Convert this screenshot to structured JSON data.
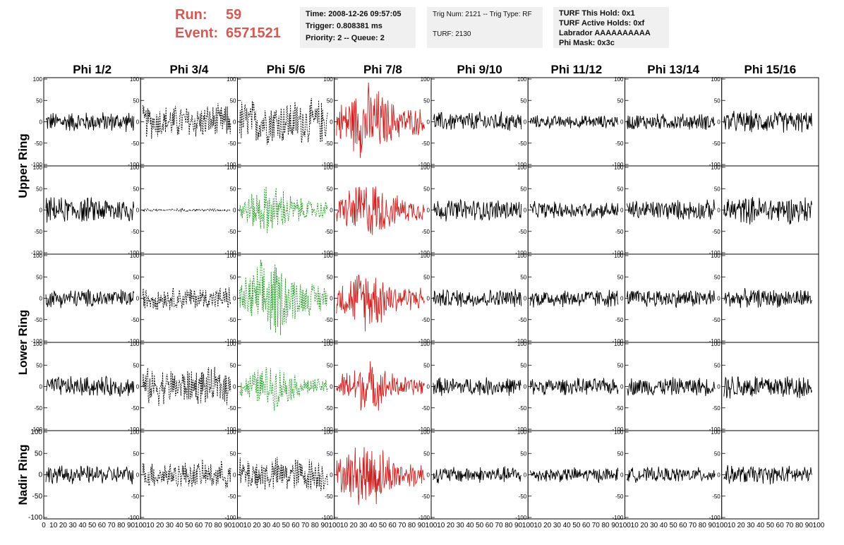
{
  "header": {
    "run_label": "Run:",
    "run_value": "59",
    "event_label": "Event:",
    "event_value": "6571521",
    "panel1": [
      "Time: 2008-12-26 09:57:05",
      "Trigger: 0.808381 ms",
      "Priority: 2 -- Queue: 2"
    ],
    "panel2": [
      "Trig Num: 2121 -- Trig Type: RF",
      "",
      "TURF: 2130"
    ],
    "panel3": [
      "TURF This Hold: 0x1",
      "TURF Active Holds: 0xf",
      "Labrador AAAAAAAAAA",
      "Phi Mask: 0x3c"
    ]
  },
  "colors": {
    "accent": "#d05a55",
    "normal": "#000000",
    "red": "#cc2222",
    "green": "#229922",
    "panel_bg": "#f0f0f0"
  },
  "chart_data": {
    "type": "line",
    "columns": [
      "Phi 1/2",
      "Phi 3/4",
      "Phi 5/6",
      "Phi 7/8",
      "Phi 9/10",
      "Phi 11/12",
      "Phi 13/14",
      "Phi 15/16"
    ],
    "rows": [
      "Upper Ring",
      "Lower Ring",
      "Nadir Ring"
    ],
    "ylim": [
      -100,
      100
    ],
    "xlim": [
      0,
      100
    ],
    "y_ticks": [
      -100,
      -50,
      0,
      50,
      100
    ],
    "x_ticks": [
      0,
      10,
      20,
      30,
      40,
      50,
      60,
      70,
      80,
      90,
      100
    ],
    "panel_styles": [
      [
        "solid",
        "dashed",
        "dashed",
        "red",
        "solid",
        "solid",
        "solid",
        "solid"
      ],
      [
        "solid",
        "dashed-flat",
        "green",
        "red",
        "solid",
        "solid",
        "solid",
        "solid"
      ],
      [
        "solid",
        "dashed",
        "green",
        "red",
        "solid",
        "solid",
        "solid",
        "solid"
      ],
      [
        "solid",
        "dashed",
        "green",
        "red",
        "solid",
        "solid",
        "solid",
        "solid"
      ],
      [
        "solid",
        "dashed",
        "dashed",
        "red",
        "solid",
        "solid",
        "solid",
        "solid"
      ]
    ],
    "panel_amplitudes": [
      [
        22,
        38,
        50,
        60,
        22,
        14,
        18,
        24
      ],
      [
        28,
        3,
        40,
        48,
        24,
        18,
        22,
        30
      ],
      [
        20,
        25,
        65,
        50,
        20,
        20,
        20,
        20
      ],
      [
        22,
        40,
        35,
        40,
        20,
        18,
        20,
        28
      ],
      [
        20,
        30,
        38,
        55,
        18,
        16,
        16,
        20
      ]
    ],
    "samples": 160
  }
}
